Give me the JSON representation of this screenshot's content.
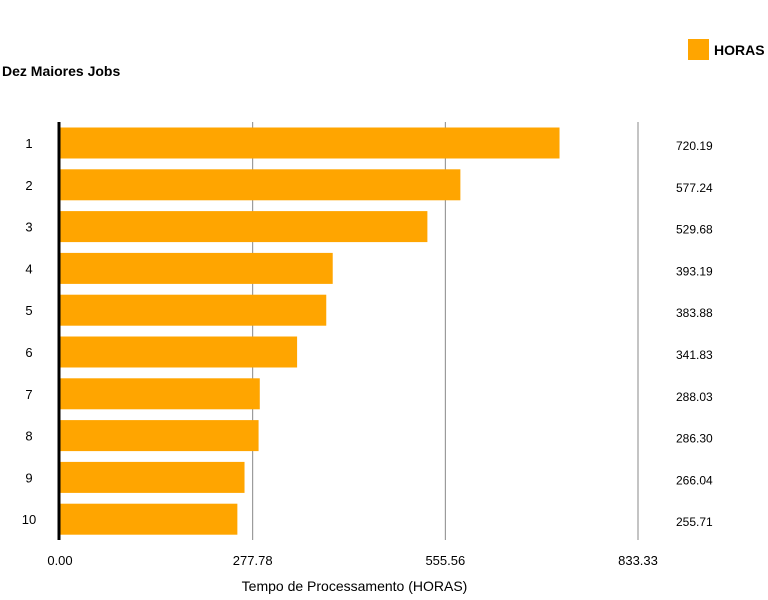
{
  "chart_data": {
    "type": "bar",
    "orientation": "horizontal",
    "title": "Dez Maiores Jobs",
    "xlabel": "Tempo de Processamento (HORAS)",
    "ylabel": "",
    "categories": [
      "1",
      "2",
      "3",
      "4",
      "5",
      "6",
      "7",
      "8",
      "9",
      "10"
    ],
    "series": [
      {
        "name": "HORAS",
        "color": "#ffa500",
        "values": [
          720.19,
          577.24,
          529.68,
          393.19,
          383.88,
          341.83,
          288.03,
          286.3,
          266.04,
          255.71
        ],
        "value_labels": [
          "720.19",
          "577.24",
          "529.68",
          "393.19",
          "383.88",
          "341.83",
          "288.03",
          "286.30",
          "266.04",
          "255.71"
        ]
      }
    ],
    "xlim": [
      0,
      833.33
    ],
    "xticks": [
      0,
      277.78,
      555.56,
      833.33
    ],
    "xtick_labels": [
      "0.00",
      "277.78",
      "555.56",
      "833.33"
    ],
    "grid": "vertical",
    "legend": "top-right",
    "value_labels_position": "right"
  }
}
